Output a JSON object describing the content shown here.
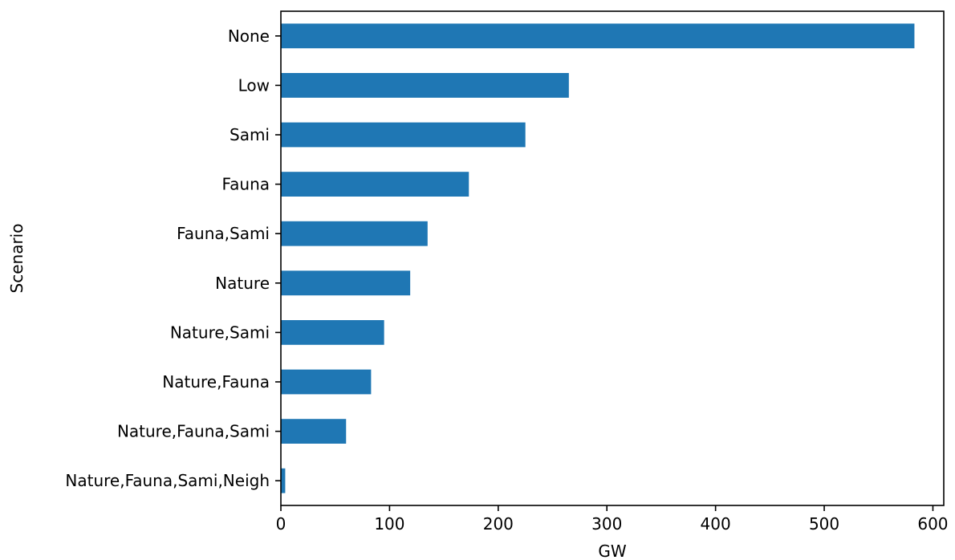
{
  "chart_data": {
    "type": "bar",
    "orientation": "horizontal",
    "title": "",
    "xlabel": "GW",
    "ylabel": "Scenario",
    "xlim": [
      0,
      610
    ],
    "xticks": [
      0,
      100,
      200,
      300,
      400,
      500,
      600
    ],
    "xtick_labels": [
      "0",
      "100",
      "200",
      "300",
      "400",
      "500",
      "600"
    ],
    "grid": false,
    "legend": "none",
    "bar_color": "#1f77b4",
    "categories": [
      "None",
      "Low",
      "Sami",
      "Fauna",
      "Fauna,Sami",
      "Nature",
      "Nature,Sami",
      "Nature,Fauna",
      "Nature,Fauna,Sami",
      "Nature,Fauna,Sami,Neigh"
    ],
    "values": [
      583,
      265,
      225,
      173,
      135,
      119,
      95,
      83,
      60,
      4
    ]
  }
}
